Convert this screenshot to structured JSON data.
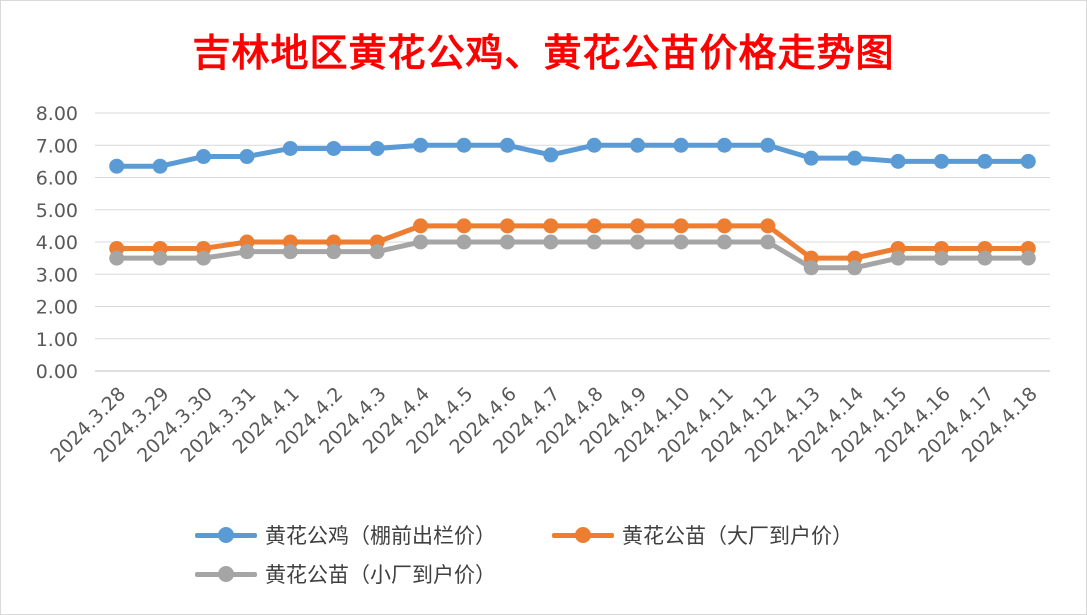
{
  "chart_data": {
    "type": "line",
    "title": "吉林地区黄花公鸡、黄花公苗价格走势图",
    "categories": [
      "2024.3.28",
      "2024.3.29",
      "2024.3.30",
      "2024.3.31",
      "2024.4.1",
      "2024.4.2",
      "2024.4.3",
      "2024.4.4",
      "2024.4.5",
      "2024.4.6",
      "2024.4.7",
      "2024.4.8",
      "2024.4.9",
      "2024.4.10",
      "2024.4.11",
      "2024.4.12",
      "2024.4.13",
      "2024.4.14",
      "2024.4.15",
      "2024.4.16",
      "2024.4.17",
      "2024.4.18"
    ],
    "yticks": [
      "0.00",
      "1.00",
      "2.00",
      "3.00",
      "4.00",
      "5.00",
      "6.00",
      "7.00",
      "8.00"
    ],
    "ylim": [
      0,
      8
    ],
    "grid": true,
    "legend_position": "bottom",
    "series": [
      {
        "name": "黄花公鸡（棚前出栏价）",
        "color": "#5b9bd5",
        "values": [
          6.35,
          6.35,
          6.65,
          6.65,
          6.9,
          6.9,
          6.9,
          7.0,
          7.0,
          7.0,
          6.7,
          7.0,
          7.0,
          7.0,
          7.0,
          7.0,
          6.6,
          6.6,
          6.5,
          6.5,
          6.5,
          6.5
        ]
      },
      {
        "name": "黄花公苗（大厂到户价）",
        "color": "#ed7d31",
        "values": [
          3.8,
          3.8,
          3.8,
          4.0,
          4.0,
          4.0,
          4.0,
          4.5,
          4.5,
          4.5,
          4.5,
          4.5,
          4.5,
          4.5,
          4.5,
          4.5,
          3.5,
          3.5,
          3.8,
          3.8,
          3.8,
          3.8
        ]
      },
      {
        "name": "黄花公苗（小厂到户价）",
        "color": "#a5a5a5",
        "values": [
          3.5,
          3.5,
          3.5,
          3.7,
          3.7,
          3.7,
          3.7,
          4.0,
          4.0,
          4.0,
          4.0,
          4.0,
          4.0,
          4.0,
          4.0,
          4.0,
          3.2,
          3.2,
          3.5,
          3.5,
          3.5,
          3.5
        ]
      }
    ]
  }
}
